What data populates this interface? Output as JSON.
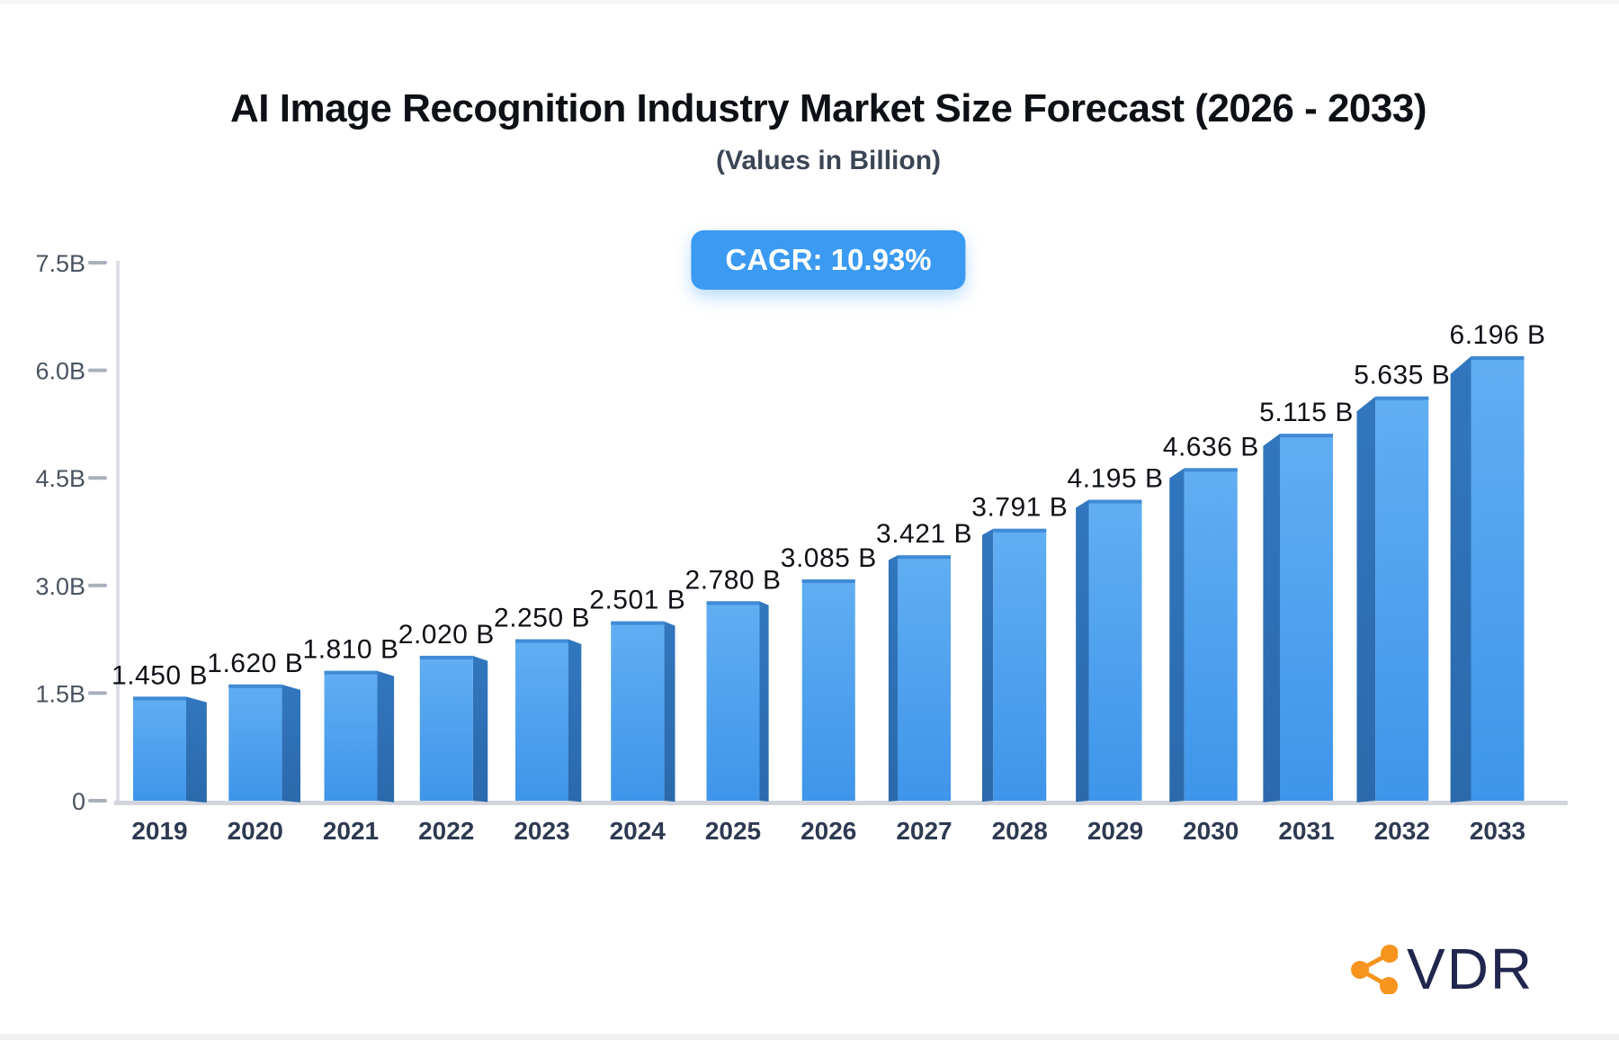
{
  "header": {
    "title": "AI Image Recognition Industry Market Size Forecast (2026 - 2033)",
    "subtitle": "(Values in Billion)"
  },
  "badge": {
    "label": "CAGR: 10.93%",
    "bg_color": "#3b9af1",
    "text_color": "#ffffff"
  },
  "chart_data": {
    "type": "bar",
    "title": "AI Image Recognition Industry Market Size Forecast (2026 - 2033)",
    "subtitle": "(Values in Billion)",
    "annotation": "CAGR: 10.93%",
    "categories": [
      "2019",
      "2020",
      "2021",
      "2022",
      "2023",
      "2024",
      "2025",
      "2026",
      "2027",
      "2028",
      "2029",
      "2030",
      "2031",
      "2032",
      "2033"
    ],
    "values": [
      1.45,
      1.62,
      1.81,
      2.02,
      2.25,
      2.501,
      2.78,
      3.085,
      3.421,
      3.791,
      4.195,
      4.636,
      5.115,
      5.635,
      6.196
    ],
    "data_labels": [
      "1.450 B",
      "1.620 B",
      "1.810 B",
      "2.020 B",
      "2.250 B",
      "2.501 B",
      "2.780 B",
      "3.085 B",
      "3.421 B",
      "3.791 B",
      "4.195 B",
      "4.636 B",
      "5.115 B",
      "5.635 B",
      "6.196 B"
    ],
    "unit": "Billion",
    "xlabel": "",
    "ylabel": "",
    "ylim": [
      0,
      7.5
    ],
    "yticks": [
      {
        "label": "0",
        "value": 0
      },
      {
        "label": "1.5B",
        "value": 1.5
      },
      {
        "label": "3.0B",
        "value": 3.0
      },
      {
        "label": "4.5B",
        "value": 4.5
      },
      {
        "label": "6.0B",
        "value": 6.0
      },
      {
        "label": "7.5B",
        "value": 7.5
      }
    ],
    "grid": false,
    "legend": "none",
    "colors": {
      "bar_front_top": "#61aef2",
      "bar_front_bottom": "#3f95ea",
      "bar_side_top": "#3177be",
      "bar_side_bottom": "#2b69ac",
      "bar_top_edge": "#3d86d3",
      "axis_line": "#dcdfe5",
      "baseline": "#d2d6dc",
      "tick_dash": "#a9b0bb",
      "ytick_text": "#4a5360",
      "xtick_text": "#2e3a52",
      "value_text": "#0e1116"
    }
  },
  "logo": {
    "text": "VDR",
    "icon": "share-network-icon",
    "icon_color": "#f6941d",
    "text_color": "#20264d"
  }
}
